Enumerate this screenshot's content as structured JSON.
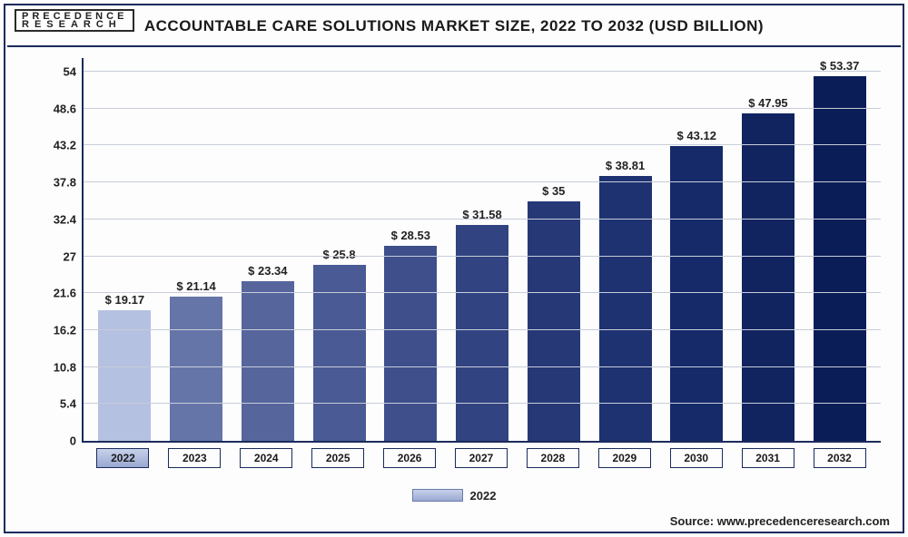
{
  "logo": {
    "line1": "PRECEDENCE",
    "line2": "RESEARCH"
  },
  "title": "ACCOUNTABLE CARE SOLUTIONS MARKET SIZE, 2022 TO 2032 (USD BILLION)",
  "source": "Source: www.precedenceresearch.com",
  "legend": {
    "year": "2022"
  },
  "chart": {
    "type": "bar",
    "ymax": 56,
    "yticks": [
      0,
      5.4,
      10.8,
      16.2,
      21.6,
      27,
      32.4,
      37.8,
      43.2,
      48.6,
      54
    ],
    "grid_color": "#c7cdd9",
    "axis_color": "#1a2b5c",
    "background_color": "#fdfdfd",
    "bar_width": 0.72,
    "label_fontsize": 13,
    "title_fontsize": 17,
    "colors": [
      "#b5c1e0",
      "#6675a8",
      "#56659c",
      "#4a5a94",
      "#3e4f8b",
      "#324381",
      "#263876",
      "#1e3170",
      "#162a69",
      "#112460",
      "#0b1d57"
    ],
    "years": [
      "2022",
      "2023",
      "2024",
      "2025",
      "2026",
      "2027",
      "2028",
      "2029",
      "2030",
      "2031",
      "2032"
    ],
    "values": [
      19.17,
      21.14,
      23.34,
      25.8,
      28.53,
      31.58,
      35,
      38.81,
      43.12,
      47.95,
      53.37
    ],
    "value_labels": [
      "$ 19.17",
      "$ 21.14",
      "$ 23.34",
      "$ 25.8",
      "$ 28.53",
      "$ 31.58",
      "$ 35",
      "$ 38.81",
      "$ 43.12",
      "$ 47.95",
      "$ 53.37"
    ]
  }
}
